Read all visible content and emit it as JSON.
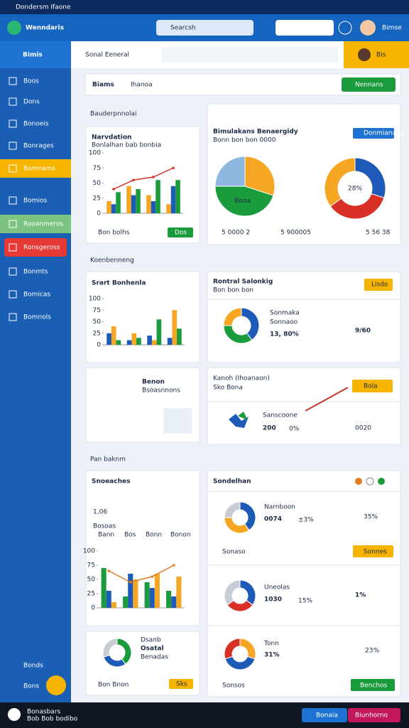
{
  "ui": {
    "status": "Dondersm Ifaone",
    "app_title": "Wenndaris",
    "search": "Searcsh",
    "user": "Bimse",
    "sidebar": {
      "header": "Bimis",
      "items": [
        "Boos",
        "Dons",
        "Bonoeis",
        "Bonrages",
        "Bomnams",
        "Bomios",
        "Rooanmeros",
        "Ronsgeross",
        "Bonmts",
        "Bomicas",
        "Bomnols"
      ],
      "bottom": [
        "Bonds",
        "Bons"
      ]
    },
    "top_title": "Sonal Eeneral",
    "top_user": "Bis",
    "tabs": [
      "Biams",
      "Ihanoa"
    ],
    "tab_button": "Nennans",
    "sections": [
      "Bauderpnnolai",
      "Koenbenneng",
      "Pan baknm"
    ],
    "card1": {
      "title": "Narvdation",
      "subtitle": "Bonlalhan bab bonbia",
      "footer": "Bon bolhs",
      "button": "Dos"
    },
    "card2": {
      "title": "Bimulakans Benaergidy",
      "subtitle": "Bonn bon bon 0000",
      "button": "Donmianans",
      "legend": [
        "5 0000 2",
        "5 900005",
        "5 56 38"
      ]
    },
    "card3": {
      "title": "Srart Bonhenla"
    },
    "card4": {
      "title": "Rontral Salonkig",
      "subtitle": "Bon bon bon",
      "button": "Lisdo",
      "label1": "Sonmaka",
      "label2": "Sonnaoo",
      "value": "13, 80%",
      "stat": "9/60"
    },
    "card5": {
      "title": "Benon",
      "subtitle": "Bsoasnnons"
    },
    "card6": {
      "title": "Kanoh (Ihoanaon)",
      "subtitle": "Sko Bona",
      "button": "Bola",
      "label": "Sanscoone",
      "value": "200",
      "pct": "0%",
      "stat": "0020"
    },
    "card7": {
      "title": "Snoeaches",
      "value": "1,06",
      "subtitle": "Bosoas",
      "legend": [
        "Bann",
        "Bos",
        "Bonn",
        "Bonon"
      ]
    },
    "card8": {
      "title": "Sondelhan",
      "row1": {
        "label": "Narnboon",
        "value": "0074",
        "delta": "±3%",
        "stat": "35%"
      },
      "row1_footer": "Sonaso",
      "row1_button": "Sonnes",
      "row2": {
        "label": "Uneolas",
        "value": "1030",
        "delta": "15%",
        "stat": "1%"
      },
      "row3": {
        "label": "Tonn",
        "value": "31%",
        "stat": "23%"
      },
      "footer": "Sonsos",
      "button": "Benchos"
    },
    "card9": {
      "title": "Dsanb",
      "value": "Osatal",
      "subtitle": "Benadas",
      "footer": "Bon Bnon",
      "button": "Sks"
    },
    "nav": {
      "title": "Bonasbars",
      "subtitle": "Bob Bob bodibo",
      "buttons": [
        "Bonaia",
        "Biunhorno"
      ]
    }
  },
  "chart_data": [
    {
      "type": "bar",
      "categories": [
        null,
        null,
        null,
        null
      ],
      "ylim": [
        0,
        100
      ],
      "yticks": [
        0,
        25,
        50,
        75,
        100
      ],
      "series": [
        {
          "color": "#f5a623",
          "values": [
            20,
            45,
            30,
            15
          ]
        },
        {
          "color": "#1e5bb8",
          "values": [
            15,
            30,
            20,
            45
          ]
        },
        {
          "color": "#1a9b3c",
          "values": [
            35,
            40,
            55,
            55
          ]
        },
        {
          "type": "line",
          "color": "#d93025",
          "values": [
            40,
            55,
            60,
            75
          ]
        }
      ]
    },
    {
      "type": "pie",
      "labels": [
        null,
        "Bona",
        null
      ],
      "values": [
        30,
        45,
        25
      ],
      "colors": [
        "#f5a623",
        "#1a9b3c",
        "#8fb8e0"
      ]
    },
    {
      "type": "donut",
      "center_label": "28%",
      "values": [
        30,
        35,
        35
      ],
      "colors": [
        "#1e5bb8",
        "#d93025",
        "#f5a623"
      ]
    },
    {
      "type": "bar",
      "categories": [
        null,
        null,
        null,
        null
      ],
      "ylim": [
        0,
        100
      ],
      "yticks": [
        0,
        25,
        50,
        75,
        100
      ],
      "series": [
        {
          "color": "#1e5bb8",
          "values": [
            25,
            10,
            20,
            15
          ]
        },
        {
          "color": "#f5a623",
          "values": [
            40,
            25,
            10,
            75
          ]
        },
        {
          "color": "#1a9b3c",
          "values": [
            10,
            15,
            55,
            35
          ]
        }
      ]
    },
    {
      "type": "donut",
      "values": [
        40,
        35,
        25
      ],
      "colors": [
        "#1e5bb8",
        "#1a9b3c",
        "#f5a623"
      ]
    },
    {
      "type": "bar",
      "categories": [
        null,
        null,
        null,
        null
      ],
      "ylim": [
        0,
        100
      ],
      "yticks": [
        0,
        25,
        50,
        75,
        100
      ],
      "series": [
        {
          "color": "#1a9b3c",
          "values": [
            70,
            20,
            45,
            30
          ]
        },
        {
          "color": "#1e5bb8",
          "values": [
            30,
            60,
            35,
            20
          ]
        },
        {
          "color": "#f5a623",
          "values": [
            10,
            50,
            60,
            55
          ]
        },
        {
          "type": "line",
          "color": "#e07b20",
          "values": [
            65,
            45,
            55,
            75
          ]
        }
      ]
    },
    {
      "type": "donut",
      "values": [
        40,
        35,
        25
      ],
      "colors": [
        "#1e5bb8",
        "#f5a623",
        "#c8ccd4"
      ]
    },
    {
      "type": "donut",
      "values": [
        35,
        30,
        35
      ],
      "colors": [
        "#1e5bb8",
        "#d93025",
        "#c8ccd4"
      ]
    },
    {
      "type": "donut",
      "values": [
        30,
        40,
        30
      ],
      "colors": [
        "#f5a623",
        "#1e5bb8",
        "#d93025"
      ]
    },
    {
      "type": "donut",
      "values": [
        40,
        30,
        30
      ],
      "colors": [
        "#1a9b3c",
        "#1e5bb8",
        "#c8ccd4"
      ]
    }
  ]
}
